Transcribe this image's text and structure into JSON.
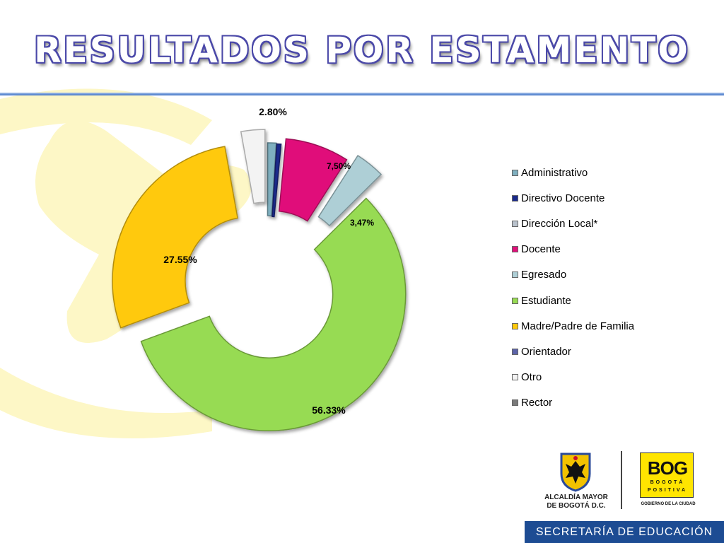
{
  "slide": {
    "title": "RESULTADOS POR ESTAMENTO",
    "title_fill_color": "#ffffff",
    "title_outline_color": "#4a48a8",
    "rule_color": "#3b6fc4",
    "background_decoration_color": "#fdf7c6"
  },
  "chart_data": {
    "type": "pie",
    "style": "doughnut, exploded slices",
    "unit": "%",
    "categories": [
      "Administrativo",
      "Directivo Docente",
      "Dirección Local*",
      "Docente",
      "Egresado",
      "Estudiante",
      "Madre/Padre de Familia",
      "Orientador",
      "Otro",
      "Rector"
    ],
    "values": [
      1.0,
      0.5,
      0,
      7.5,
      3.47,
      56.33,
      27.55,
      0,
      2.8,
      0
    ],
    "colors": [
      "#7fb0c0",
      "#1a2a8a",
      "#b9c2cc",
      "#e0107a",
      "#aecfd6",
      "#97db52",
      "#ffc90a",
      "#5c63a8",
      "#f3f3f3",
      "#7a7a7a"
    ],
    "data_labels": [
      "",
      "",
      "",
      "7,50%",
      "3,47%",
      "56.33%",
      "27.55%",
      "",
      "2.80%",
      ""
    ],
    "legend_position": "right"
  },
  "footer": {
    "alcaldia_line1": "ALCALDÍA MAYOR",
    "alcaldia_line2": "DE BOGOTÁ D.C.",
    "bog_mark": "BOG",
    "bog_sub1": "BOGOTÁ",
    "bog_sub2": "POSITIVA",
    "gobierno": "GOBIERNO DE LA CIUDAD",
    "secretaria": "SECRETARÍA DE EDUCACIÓN",
    "secretaria_color": "#1d4c93",
    "bog_color": "#ffe500"
  }
}
